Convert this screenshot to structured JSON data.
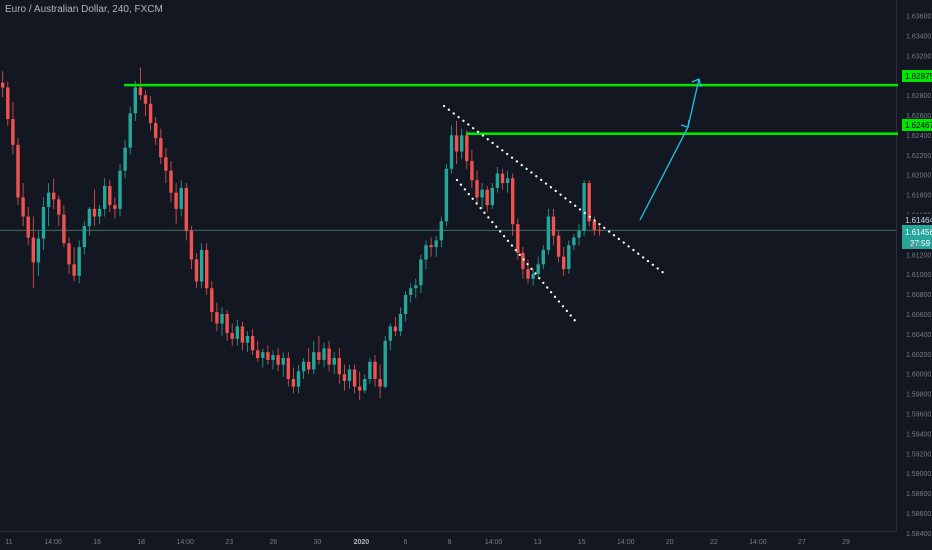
{
  "chart_data": {
    "type": "candlestick",
    "title": "Euro / Australian Dollar, 240, FXCM",
    "y_axis": {
      "ticks": [
        "1.63600",
        "1.63400",
        "1.63200",
        "1.63000",
        "1.62800",
        "1.62600",
        "1.62400",
        "1.62200",
        "1.62000",
        "1.61800",
        "1.61600",
        "1.61400",
        "1.61200",
        "1.61000",
        "1.60800",
        "1.60600",
        "1.60400",
        "1.60200",
        "1.60000",
        "1.59800",
        "1.59600",
        "1.59400",
        "1.59200",
        "1.59000",
        "1.58800",
        "1.58600",
        "1.58400"
      ],
      "ylim": [
        1.5832,
        1.6374
      ]
    },
    "x_axis": {
      "ticks": [
        "11",
        "14:00",
        "16",
        "18",
        "14:00",
        "23",
        "26",
        "30",
        "2020",
        "6",
        "8",
        "14:00",
        "13",
        "15",
        "14:00",
        "20",
        "22",
        "14:00",
        "27",
        "29"
      ]
    },
    "price_labels": {
      "resistance_1": "1.62975",
      "resistance_2": "1.62467",
      "last_price": "1.61464",
      "current_price": "1.61456",
      "countdown": "37:59",
      "hidden_tick": "1.6"
    },
    "levels": [
      {
        "name": "resistance_1",
        "value": 1.62975,
        "color": "#00e600"
      },
      {
        "name": "resistance_2",
        "value": 1.62467,
        "color": "#00e600"
      }
    ],
    "current_price_value": 1.61456,
    "colors": {
      "up": "#26a69a",
      "down": "#ef5350",
      "level": "#00e600",
      "arrow": "#22c3e6",
      "channel": "#ffffff",
      "background": "#131722"
    },
    "candles": [
      [
        1.63,
        1.6312,
        1.6285,
        1.6295
      ],
      [
        1.6295,
        1.6301,
        1.6255,
        1.6262
      ],
      [
        1.6262,
        1.628,
        1.6225,
        1.6235
      ],
      [
        1.6235,
        1.6242,
        1.6172,
        1.618
      ],
      [
        1.618,
        1.6195,
        1.615,
        1.616
      ],
      [
        1.616,
        1.617,
        1.613,
        1.6138
      ],
      [
        1.6138,
        1.616,
        1.6085,
        1.6112
      ],
      [
        1.6112,
        1.6145,
        1.6098,
        1.6137
      ],
      [
        1.6137,
        1.618,
        1.6125,
        1.617
      ],
      [
        1.617,
        1.6195,
        1.615,
        1.6185
      ],
      [
        1.6185,
        1.62,
        1.6168,
        1.6178
      ],
      [
        1.6178,
        1.6182,
        1.615,
        1.6162
      ],
      [
        1.6162,
        1.6172,
        1.6128,
        1.6132
      ],
      [
        1.6132,
        1.6138,
        1.61,
        1.611
      ],
      [
        1.611,
        1.6128,
        1.6092,
        1.6098
      ],
      [
        1.6098,
        1.6135,
        1.609,
        1.6128
      ],
      [
        1.6128,
        1.6155,
        1.612,
        1.615
      ],
      [
        1.615,
        1.617,
        1.614,
        1.6168
      ],
      [
        1.6168,
        1.6188,
        1.615,
        1.616
      ],
      [
        1.616,
        1.6172,
        1.6152,
        1.6168
      ],
      [
        1.6168,
        1.62,
        1.616,
        1.6192
      ],
      [
        1.6192,
        1.6198,
        1.6165,
        1.6172
      ],
      [
        1.6172,
        1.618,
        1.6158,
        1.6168
      ],
      [
        1.6168,
        1.6215,
        1.616,
        1.6208
      ],
      [
        1.6208,
        1.624,
        1.62,
        1.6232
      ],
      [
        1.6232,
        1.6275,
        1.6225,
        1.6268
      ],
      [
        1.6268,
        1.6302,
        1.626,
        1.6295
      ],
      [
        1.6295,
        1.6316,
        1.6282,
        1.6287
      ],
      [
        1.6287,
        1.6292,
        1.6265,
        1.6278
      ],
      [
        1.6278,
        1.6286,
        1.625,
        1.6258
      ],
      [
        1.6258,
        1.6264,
        1.6235,
        1.6242
      ],
      [
        1.6242,
        1.6252,
        1.6215,
        1.6222
      ],
      [
        1.6222,
        1.6232,
        1.6195,
        1.6208
      ],
      [
        1.6208,
        1.6218,
        1.6175,
        1.6185
      ],
      [
        1.6185,
        1.6195,
        1.6152,
        1.6168
      ],
      [
        1.6168,
        1.6198,
        1.616,
        1.619
      ],
      [
        1.619,
        1.6195,
        1.6135,
        1.6145
      ],
      [
        1.6145,
        1.615,
        1.6105,
        1.6115
      ],
      [
        1.6115,
        1.6122,
        1.6085,
        1.6092
      ],
      [
        1.6092,
        1.6132,
        1.6085,
        1.6125
      ],
      [
        1.6125,
        1.6132,
        1.6078,
        1.6085
      ],
      [
        1.6085,
        1.6092,
        1.605,
        1.606
      ],
      [
        1.606,
        1.607,
        1.604,
        1.6048
      ],
      [
        1.6048,
        1.6065,
        1.6035,
        1.6058
      ],
      [
        1.6058,
        1.6062,
        1.603,
        1.6038
      ],
      [
        1.6038,
        1.6048,
        1.6025,
        1.6032
      ],
      [
        1.6032,
        1.6052,
        1.6025,
        1.6045
      ],
      [
        1.6045,
        1.605,
        1.602,
        1.6028
      ],
      [
        1.6028,
        1.604,
        1.6018,
        1.6035
      ],
      [
        1.6035,
        1.6042,
        1.6015,
        1.602
      ],
      [
        1.602,
        1.603,
        1.6008,
        1.6012
      ],
      [
        1.6012,
        1.6022,
        1.6002,
        1.6018
      ],
      [
        1.6018,
        1.6025,
        1.6005,
        1.601
      ],
      [
        1.601,
        1.602,
        1.6,
        1.6015
      ],
      [
        1.6015,
        1.6022,
        1.5998,
        1.6005
      ],
      [
        1.6005,
        1.6018,
        1.5992,
        1.6012
      ],
      [
        1.6012,
        1.6018,
        1.5982,
        1.599
      ],
      [
        1.599,
        1.6002,
        1.5975,
        1.5982
      ],
      [
        1.5982,
        1.6005,
        1.5975,
        1.5998
      ],
      [
        1.5998,
        1.6012,
        1.599,
        1.6008
      ],
      [
        1.6008,
        1.6022,
        1.5995,
        1.6
      ],
      [
        1.6,
        1.603,
        1.5995,
        1.6018
      ],
      [
        1.6018,
        1.6035,
        1.6005,
        1.601
      ],
      [
        1.601,
        1.6028,
        1.6002,
        1.6022
      ],
      [
        1.6022,
        1.603,
        1.5998,
        1.6005
      ],
      [
        1.6005,
        1.6018,
        1.5995,
        1.6012
      ],
      [
        1.6012,
        1.6022,
        1.5985,
        1.5995
      ],
      [
        1.5995,
        1.6005,
        1.5978,
        1.5988
      ],
      [
        1.5988,
        1.6005,
        1.598,
        1.6
      ],
      [
        1.6,
        1.6005,
        1.5975,
        1.5982
      ],
      [
        1.5982,
        1.5998,
        1.5968,
        1.5978
      ],
      [
        1.5978,
        1.5995,
        1.5975,
        1.599
      ],
      [
        1.599,
        1.6012,
        1.5985,
        1.6008
      ],
      [
        1.6008,
        1.6015,
        1.5982,
        1.599
      ],
      [
        1.599,
        1.6005,
        1.597,
        1.5982
      ],
      [
        1.5982,
        1.6035,
        1.598,
        1.603
      ],
      [
        1.603,
        1.6048,
        1.602,
        1.6045
      ],
      [
        1.6045,
        1.6055,
        1.6035,
        1.604
      ],
      [
        1.604,
        1.6065,
        1.6035,
        1.6058
      ],
      [
        1.6058,
        1.6082,
        1.605,
        1.6078
      ],
      [
        1.6078,
        1.609,
        1.607,
        1.6085
      ],
      [
        1.6085,
        1.6095,
        1.6075,
        1.6088
      ],
      [
        1.6088,
        1.612,
        1.608,
        1.6115
      ],
      [
        1.6115,
        1.6135,
        1.6105,
        1.613
      ],
      [
        1.613,
        1.6138,
        1.6118,
        1.6128
      ],
      [
        1.6128,
        1.614,
        1.6118,
        1.6135
      ],
      [
        1.6135,
        1.616,
        1.6128,
        1.6155
      ],
      [
        1.6155,
        1.6215,
        1.615,
        1.621
      ],
      [
        1.621,
        1.6255,
        1.6205,
        1.6245
      ],
      [
        1.6245,
        1.626,
        1.6215,
        1.6228
      ],
      [
        1.6228,
        1.6252,
        1.622,
        1.6245
      ],
      [
        1.6245,
        1.625,
        1.621,
        1.6218
      ],
      [
        1.6218,
        1.623,
        1.619,
        1.6198
      ],
      [
        1.6198,
        1.6208,
        1.6172,
        1.618
      ],
      [
        1.618,
        1.6195,
        1.6168,
        1.6188
      ],
      [
        1.6188,
        1.6192,
        1.6165,
        1.6172
      ],
      [
        1.6172,
        1.6195,
        1.6168,
        1.619
      ],
      [
        1.619,
        1.6212,
        1.6185,
        1.6205
      ],
      [
        1.6205,
        1.621,
        1.6188,
        1.6195
      ],
      [
        1.6195,
        1.6208,
        1.6185,
        1.62
      ],
      [
        1.62,
        1.6205,
        1.614,
        1.6152
      ],
      [
        1.6152,
        1.6158,
        1.6115,
        1.6122
      ],
      [
        1.6122,
        1.6128,
        1.6095,
        1.6105
      ],
      [
        1.6105,
        1.6115,
        1.609,
        1.6095
      ],
      [
        1.6095,
        1.6105,
        1.6088,
        1.61
      ],
      [
        1.61,
        1.6118,
        1.6095,
        1.611
      ],
      [
        1.611,
        1.613,
        1.6105,
        1.6125
      ],
      [
        1.6125,
        1.6168,
        1.612,
        1.616
      ],
      [
        1.616,
        1.6168,
        1.613,
        1.614
      ],
      [
        1.614,
        1.6145,
        1.6112,
        1.6118
      ],
      [
        1.6118,
        1.6128,
        1.6098,
        1.6105
      ],
      [
        1.6105,
        1.6135,
        1.61,
        1.613
      ],
      [
        1.613,
        1.6142,
        1.6125,
        1.6138
      ],
      [
        1.6138,
        1.6152,
        1.613,
        1.6145
      ],
      [
        1.6145,
        1.6198,
        1.614,
        1.6195
      ],
      [
        1.6195,
        1.6198,
        1.615,
        1.6155
      ],
      [
        1.6155,
        1.616,
        1.614,
        1.6146
      ],
      [
        1.6146,
        1.615,
        1.614,
        1.61456
      ]
    ]
  }
}
